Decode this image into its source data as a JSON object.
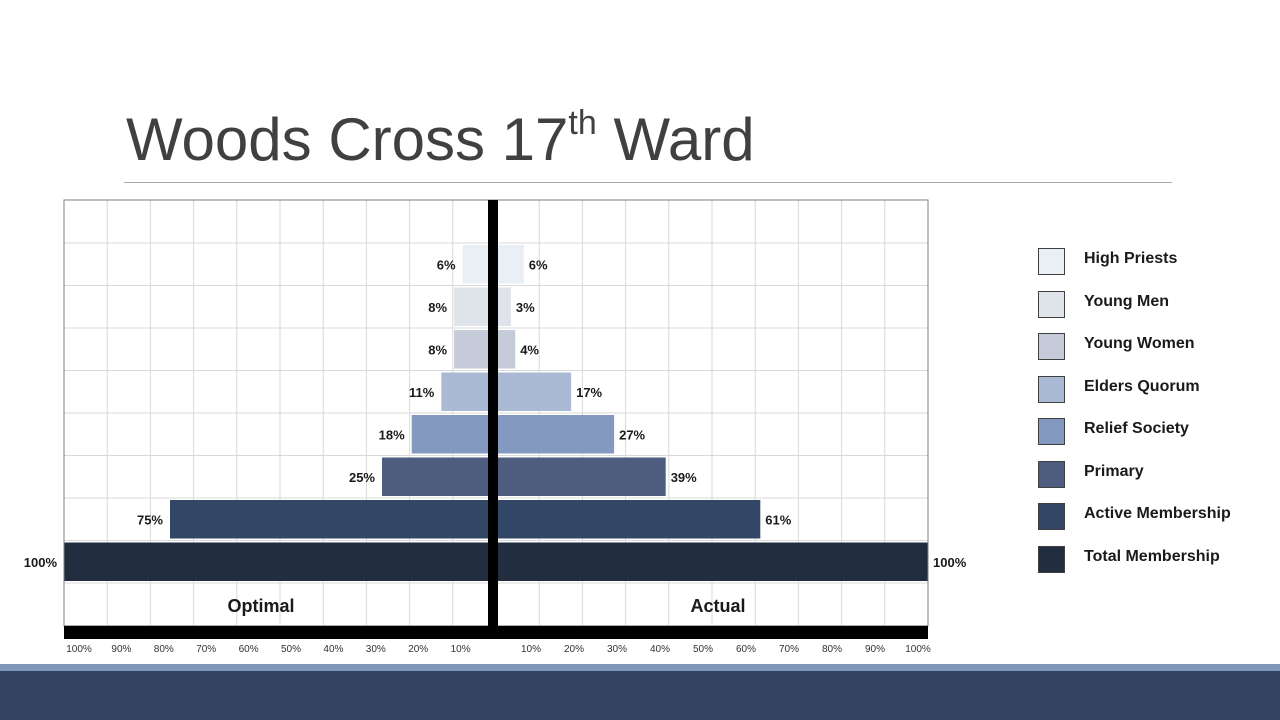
{
  "slide": {
    "title_main": "Woods Cross 17",
    "title_sup": "th",
    "title_end": " Ward"
  },
  "chart_data": {
    "type": "bar",
    "orientation": "horizontal",
    "layout": "population-pyramid",
    "categories": [
      "High Priests",
      "Young Men",
      "Young Women",
      "Elders Quorum",
      "Relief Society",
      "Primary",
      "Active Membership",
      "Total Membership"
    ],
    "series": [
      {
        "name": "Optimal",
        "values": [
          6,
          8,
          8,
          11,
          18,
          25,
          75,
          100
        ],
        "labels": [
          "6%",
          "8%",
          "8%",
          "11%",
          "18%",
          "25%",
          "75%",
          "100%"
        ],
        "side": "left"
      },
      {
        "name": "Actual",
        "values": [
          6,
          3,
          4,
          17,
          27,
          39,
          61,
          100
        ],
        "labels": [
          "6%",
          "3%",
          "4%",
          "17%",
          "27%",
          "39%",
          "61%",
          "100%"
        ],
        "side": "right"
      }
    ],
    "colors": [
      "#eaeff6",
      "#dfe3ea",
      "#c5cbd8",
      "#abbad4",
      "#8399c0",
      "#4e5c80",
      "#324665",
      "#222d40"
    ],
    "x_ticks_left": [
      "100%",
      "90%",
      "80%",
      "70%",
      "60%",
      "50%",
      "40%",
      "30%",
      "20%",
      "10%"
    ],
    "x_ticks_right": [
      "10%",
      "20%",
      "30%",
      "40%",
      "50%",
      "60%",
      "70%",
      "80%",
      "90%",
      "100%"
    ],
    "xlim": [
      0,
      100
    ],
    "grid": true,
    "legend_position": "right"
  }
}
